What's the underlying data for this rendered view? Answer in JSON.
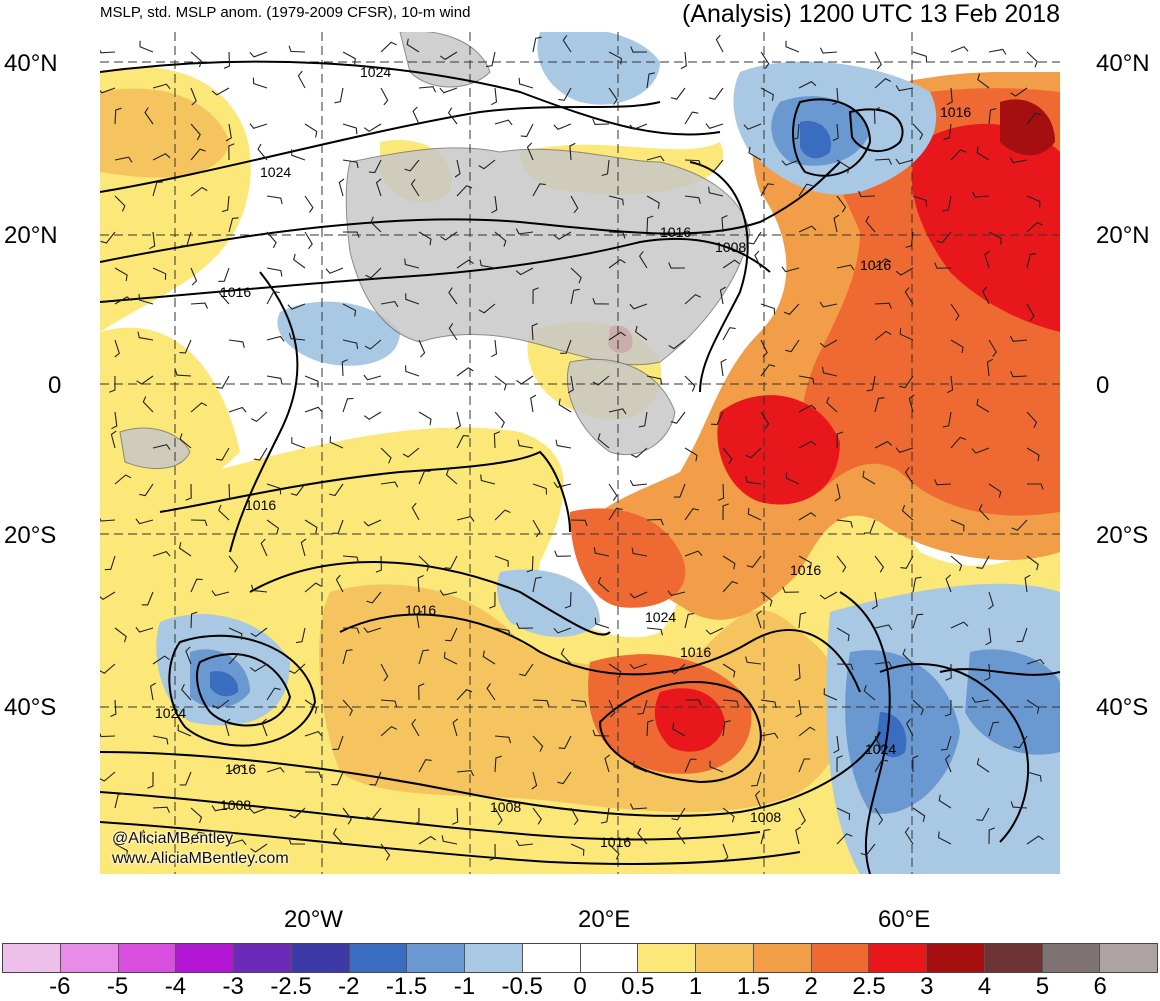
{
  "header": {
    "left_title": "MSLP, std. MSLP anom. (1979-2009 CFSR), 10-m wind",
    "right_title": "(Analysis) 1200 UTC 13 Feb 2018"
  },
  "axes": {
    "lat_left": [
      "40°N",
      "20°N",
      "0",
      "20°S",
      "40°S"
    ],
    "lat_right": [
      "40°N",
      "20°N",
      "0",
      "20°S",
      "40°S"
    ],
    "lon_bottom": [
      "20°W",
      "20°E",
      "60°E"
    ]
  },
  "credits": {
    "handle": "@AliciaMBentley",
    "website": "www.AliciaMBentley.com"
  },
  "isobar_labels": [
    "1024",
    "1024",
    "1016",
    "1016",
    "1008",
    "1016",
    "1016",
    "1016",
    "1016",
    "1024",
    "1016",
    "1016",
    "1024",
    "1016",
    "1008",
    "1008",
    "1016",
    "1008",
    "1024"
  ],
  "colorbar": {
    "labels": [
      "-6",
      "-5",
      "-4",
      "-3",
      "-2.5",
      "-2",
      "-1.5",
      "-1",
      "-0.5",
      "0",
      "0.5",
      "1",
      "1.5",
      "2",
      "2.5",
      "3",
      "4",
      "5",
      "6"
    ],
    "colors": [
      "#f0c0ec",
      "#e88ce8",
      "#d84fe0",
      "#b317d4",
      "#6b2ab8",
      "#3d3aa8",
      "#3a6cc0",
      "#6a98d0",
      "#a8c8e4",
      "#ffffff",
      "#ffffff",
      "#fbe878",
      "#f5c45e",
      "#f29d48",
      "#ef6a32",
      "#e8171c",
      "#a50f10",
      "#6e3434",
      "#7f7272",
      "#ada3a3"
    ]
  },
  "palette": {
    "land": "#c8c8c8",
    "contour": "#000000",
    "grid": "#333333"
  }
}
